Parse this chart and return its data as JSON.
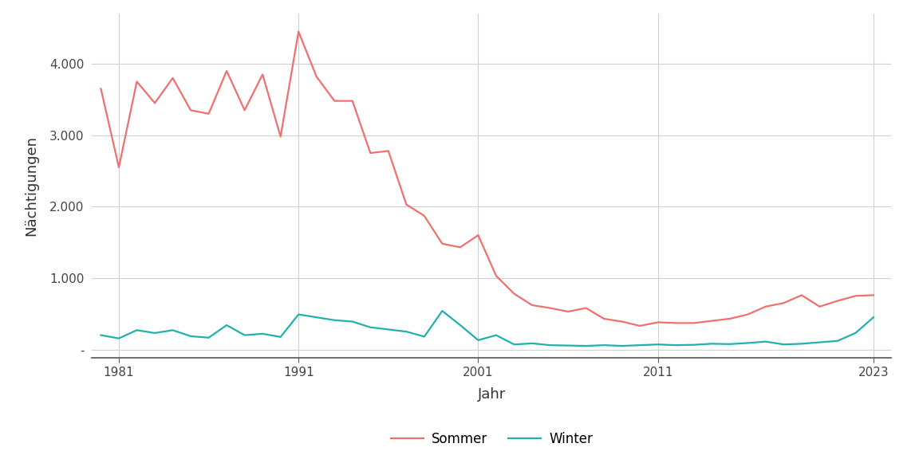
{
  "years": [
    1980,
    1981,
    1982,
    1983,
    1984,
    1985,
    1986,
    1987,
    1988,
    1989,
    1990,
    1991,
    1992,
    1993,
    1994,
    1995,
    1996,
    1997,
    1998,
    1999,
    2000,
    2001,
    2002,
    2003,
    2004,
    2005,
    2006,
    2007,
    2008,
    2009,
    2010,
    2011,
    2012,
    2013,
    2014,
    2015,
    2016,
    2017,
    2018,
    2019,
    2020,
    2021,
    2022,
    2023
  ],
  "sommer": [
    3650,
    2550,
    3750,
    3450,
    3800,
    3350,
    3300,
    3900,
    3350,
    3850,
    2980,
    4450,
    3820,
    3480,
    3480,
    2750,
    2780,
    2030,
    1870,
    1480,
    1430,
    1600,
    1030,
    780,
    620,
    580,
    530,
    580,
    430,
    390,
    330,
    380,
    370,
    370,
    400,
    430,
    490,
    600,
    650,
    760,
    600,
    680,
    750,
    760
  ],
  "winter": [
    200,
    155,
    270,
    230,
    270,
    185,
    165,
    340,
    200,
    220,
    175,
    490,
    450,
    410,
    390,
    310,
    280,
    250,
    180,
    540,
    340,
    130,
    200,
    70,
    85,
    60,
    55,
    50,
    60,
    50,
    60,
    70,
    60,
    65,
    80,
    75,
    90,
    110,
    70,
    80,
    100,
    120,
    230,
    450
  ],
  "sommer_color": "#F07070",
  "winter_color": "#20B2AA",
  "xlabel": "Jahr",
  "ylabel": "Nächtigungen",
  "xlim": [
    1979.5,
    2024.0
  ],
  "ylim": [
    -120,
    4700
  ],
  "xticks": [
    1981,
    1991,
    2001,
    2011,
    2023
  ],
  "yticks": [
    0,
    1000,
    2000,
    3000,
    4000
  ],
  "ytick_labels": [
    "-",
    "1.000",
    "2.000",
    "3.000",
    "4.000"
  ],
  "legend_labels": [
    "Sommer",
    "Winter"
  ],
  "bg_color": "#ffffff",
  "grid_color": "#d0d0d0",
  "line_width": 1.6,
  "axis_color": "#555555"
}
